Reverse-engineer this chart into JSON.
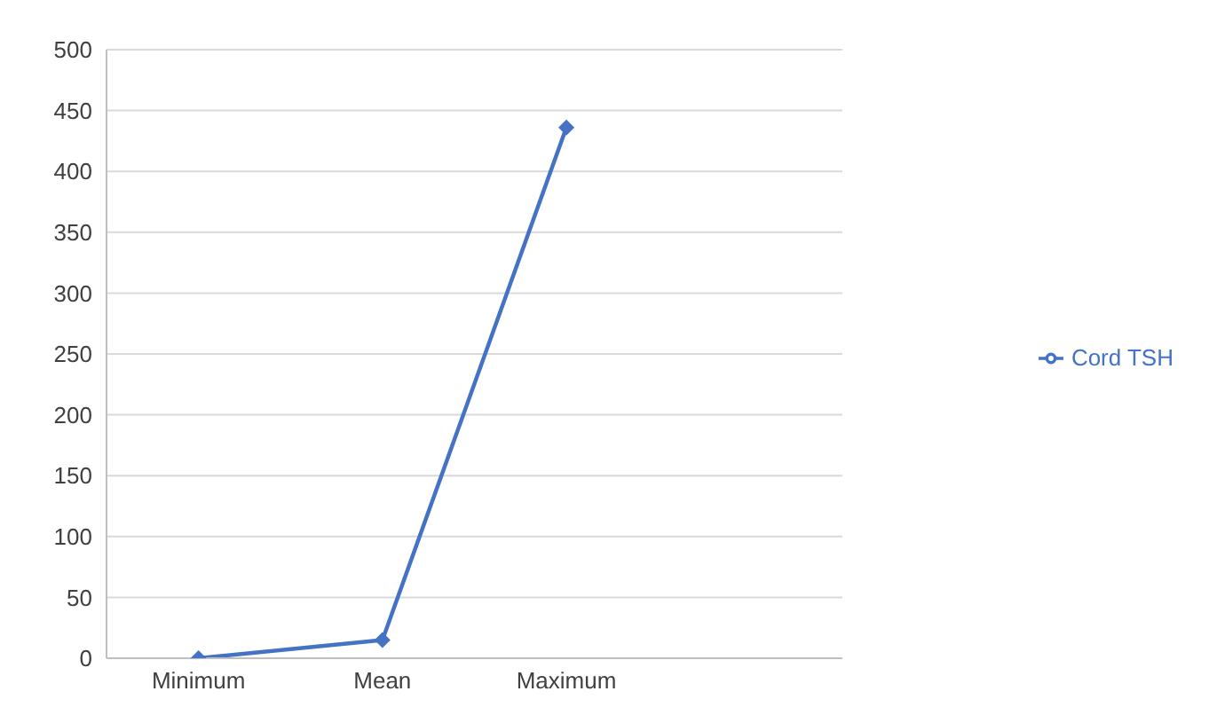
{
  "chart_data": {
    "type": "line",
    "categories": [
      "Minimum",
      "Mean",
      "Maximum",
      null
    ],
    "series": [
      {
        "name": "Cord TSH",
        "color": "#4472c4",
        "values": [
          0,
          15,
          436,
          null
        ]
      }
    ],
    "ylim": [
      0,
      500
    ],
    "yticks": [
      0,
      50,
      100,
      150,
      200,
      250,
      300,
      350,
      400,
      450,
      500
    ],
    "grid": "y",
    "legend": "right",
    "marker": "diamond",
    "line_style": "solid"
  }
}
